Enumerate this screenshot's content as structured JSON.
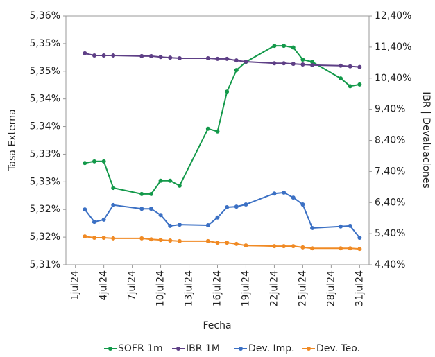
{
  "chart_data": {
    "type": "line",
    "xlabel": "Fecha",
    "ylabel": "Tasa Externa",
    "y2label": "IBR | Devaluaciones",
    "x": [
      "2024-07-02",
      "2024-07-03",
      "2024-07-04",
      "2024-07-05",
      "2024-07-08",
      "2024-07-09",
      "2024-07-10",
      "2024-07-11",
      "2024-07-12",
      "2024-07-15",
      "2024-07-16",
      "2024-07-17",
      "2024-07-18",
      "2024-07-19",
      "2024-07-22",
      "2024-07-23",
      "2024-07-24",
      "2024-07-25",
      "2024-07-26",
      "2024-07-29",
      "2024-07-30",
      "2024-07-31"
    ],
    "xlim": [
      "2024-06-30",
      "2024-08-01"
    ],
    "xticks": [
      {
        "value": "2024-07-01",
        "label": "1jul24"
      },
      {
        "value": "2024-07-04",
        "label": "4jul24"
      },
      {
        "value": "2024-07-07",
        "label": "7jul24"
      },
      {
        "value": "2024-07-10",
        "label": "10jul24"
      },
      {
        "value": "2024-07-13",
        "label": "13jul24"
      },
      {
        "value": "2024-07-16",
        "label": "16jul24"
      },
      {
        "value": "2024-07-19",
        "label": "19jul24"
      },
      {
        "value": "2024-07-22",
        "label": "22jul24"
      },
      {
        "value": "2024-07-25",
        "label": "25jul24"
      },
      {
        "value": "2024-07-28",
        "label": "28jul24"
      },
      {
        "value": "2024-07-31",
        "label": "31jul24"
      }
    ],
    "ylim": [
      5.315,
      5.36
    ],
    "yticks": [
      {
        "value": 5.315,
        "label": "5,31%"
      },
      {
        "value": 5.32,
        "label": "5,32%"
      },
      {
        "value": 5.325,
        "label": "5,32%"
      },
      {
        "value": 5.33,
        "label": "5,33%"
      },
      {
        "value": 5.335,
        "label": "5,33%"
      },
      {
        "value": 5.34,
        "label": "5,34%"
      },
      {
        "value": 5.345,
        "label": "5,34%"
      },
      {
        "value": 5.35,
        "label": "5,35%"
      },
      {
        "value": 5.355,
        "label": "5,35%"
      },
      {
        "value": 5.36,
        "label": "5,36%"
      }
    ],
    "y2lim": [
      4.4,
      12.4
    ],
    "y2ticks": [
      {
        "value": 4.4,
        "label": "4,40%"
      },
      {
        "value": 5.4,
        "label": "5,40%"
      },
      {
        "value": 6.4,
        "label": "6,40%"
      },
      {
        "value": 7.4,
        "label": "7,40%"
      },
      {
        "value": 8.4,
        "label": "8,40%"
      },
      {
        "value": 9.4,
        "label": "9,40%"
      },
      {
        "value": 10.4,
        "label": "10,40%"
      },
      {
        "value": 11.4,
        "label": "11,40%"
      },
      {
        "value": 12.4,
        "label": "12,40%"
      }
    ],
    "grid": false,
    "legend": "bottom",
    "series": [
      {
        "name": "SOFR 1m",
        "color": "#13994a",
        "values": [
          5.3334,
          5.3337,
          5.3337,
          5.3289,
          5.3278,
          5.3278,
          5.3302,
          5.3302,
          5.3293,
          5.3396,
          5.3391,
          5.3463,
          5.3502,
          5.3517,
          5.3546,
          5.3546,
          5.3543,
          5.3521,
          5.3517,
          5.3487,
          5.3473,
          5.3476
        ]
      },
      {
        "name": "IBR 1M",
        "axis": "y2",
        "color": "#5e3f86",
        "values": [
          11.2,
          11.13,
          11.13,
          11.13,
          11.11,
          11.11,
          11.08,
          11.06,
          11.04,
          11.04,
          11.02,
          11.02,
          10.97,
          10.93,
          10.88,
          10.88,
          10.86,
          10.84,
          10.82,
          10.8,
          10.78,
          10.76
        ]
      },
      {
        "name": "Dev. Imp.",
        "axis": "y2",
        "color": "#3b70c4",
        "values": [
          6.18,
          5.78,
          5.85,
          6.32,
          6.2,
          6.2,
          6.0,
          5.65,
          5.69,
          5.67,
          5.92,
          6.25,
          6.27,
          6.34,
          6.69,
          6.72,
          6.56,
          6.34,
          5.58,
          5.63,
          5.65,
          5.27
        ]
      },
      {
        "name": "Dev. Teo.",
        "axis": "y2",
        "color": "#f08a24",
        "values": [
          5.31,
          5.27,
          5.27,
          5.25,
          5.25,
          5.22,
          5.2,
          5.18,
          5.16,
          5.16,
          5.11,
          5.11,
          5.07,
          5.02,
          5.0,
          5.0,
          5.0,
          4.96,
          4.93,
          4.93,
          4.93,
          4.91
        ]
      }
    ]
  }
}
